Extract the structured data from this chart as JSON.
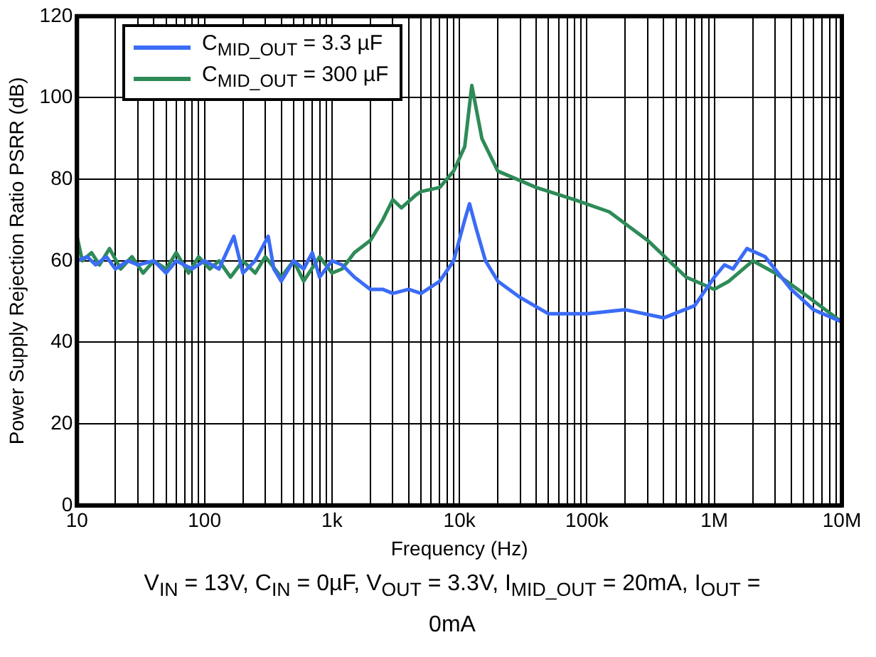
{
  "chart_data": {
    "type": "line",
    "xlabel": "Frequency (Hz)",
    "ylabel": "Power Supply Rejection Ratio PSRR (dB)",
    "log": "x",
    "grid": true,
    "legend": "top left",
    "marker": "none",
    "line_style": "solid",
    "xlim": [
      10,
      10000000
    ],
    "xticks": [
      {
        "value": 10,
        "label": "10"
      },
      {
        "value": 100,
        "label": "100"
      },
      {
        "value": 1000,
        "label": "1k"
      },
      {
        "value": 10000,
        "label": "10k"
      },
      {
        "value": 100000,
        "label": "100k"
      },
      {
        "value": 1000000,
        "label": "1M"
      },
      {
        "value": 10000000,
        "label": "10M"
      }
    ],
    "ylim": [
      0,
      120
    ],
    "yticks": [
      0,
      20,
      40,
      60,
      80,
      100,
      120
    ],
    "series": [
      {
        "name": "C$_{MID_OUT}$ = 3.3 µF",
        "color": "#3b6cf6",
        "x": [
          10,
          12,
          14,
          17,
          20,
          25,
          30,
          40,
          50,
          60,
          80,
          100,
          130,
          170,
          200,
          250,
          316,
          350,
          400,
          500,
          600,
          700,
          800,
          1000,
          1200,
          1500,
          2000,
          2500,
          3000,
          4000,
          5000,
          7000,
          9000,
          11000,
          12000,
          13500,
          16000,
          20000,
          30000,
          50000,
          100000,
          200000,
          400000,
          700000,
          1000000,
          1200000,
          1400000,
          1800000,
          2500000,
          4000000,
          6000000,
          10000000
        ],
        "values": [
          60,
          61,
          59,
          61,
          58,
          60,
          59,
          60,
          57,
          60,
          58,
          60,
          58,
          66,
          57,
          60,
          66,
          58,
          55,
          60,
          58,
          62,
          56,
          60,
          59,
          56,
          53,
          53,
          52,
          53,
          52,
          55,
          60,
          70,
          74,
          68,
          60,
          55,
          51,
          47,
          47,
          48,
          46,
          49,
          56,
          59,
          58,
          63,
          61,
          53,
          48,
          45
        ]
      },
      {
        "name": "C$_{MID_OUT}$ = 300 µF",
        "color": "#2e8b57",
        "x": [
          10,
          11,
          13,
          15,
          18,
          22,
          27,
          33,
          40,
          50,
          60,
          75,
          90,
          110,
          130,
          160,
          200,
          250,
          300,
          400,
          500,
          600,
          800,
          1000,
          1200,
          1500,
          2000,
          2500,
          3000,
          3500,
          4500,
          5000,
          7000,
          9000,
          11000,
          12500,
          15000,
          20000,
          40000,
          80000,
          150000,
          300000,
          600000,
          1000000,
          1300000,
          2000000,
          3000000,
          5000000,
          10000000
        ],
        "values": [
          66,
          60,
          62,
          59,
          63,
          58,
          61,
          57,
          60,
          58,
          62,
          57,
          61,
          58,
          60,
          56,
          60,
          57,
          61,
          56,
          60,
          55,
          61,
          57,
          58,
          62,
          65,
          70,
          75,
          73,
          76,
          77,
          78,
          82,
          88,
          103,
          90,
          82,
          78,
          75,
          72,
          65,
          56,
          53,
          55,
          60,
          57,
          52,
          45
        ]
      }
    ],
    "annotations": [
      "V$_{IN}$ = 13V, C$_{IN}$ = 0µF, V$_{OUT}$ = 3.3V, I$_{MID_OUT}$ = 20mA, I$_{OUT}$ = 0mA"
    ]
  }
}
